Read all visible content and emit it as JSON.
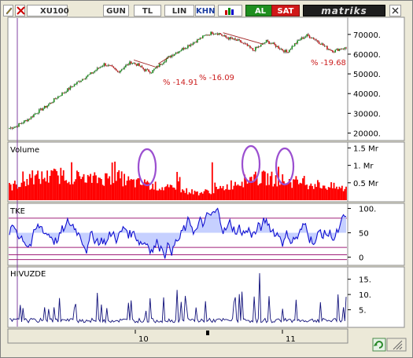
{
  "toolbar": {
    "symbol": "XU100",
    "period": "GUN",
    "currency": "TL",
    "scale": "LIN",
    "mode": "KHN",
    "buy_label": "AL",
    "sell_label": "SAT",
    "brand": "matriks",
    "buy_color": "#1f8f1f",
    "sell_color": "#d01818",
    "icons": [
      "edit-pencil-icon",
      "cross-out-icon",
      "bar-chart-icon",
      "close-icon"
    ]
  },
  "footer": {
    "refresh_icon": "refresh-icon",
    "resize_icon": "resize-grip-icon"
  },
  "chart_data": [
    {
      "type": "candlestick",
      "name": "XU100",
      "ylim": [
        17000,
        77500
      ],
      "yticks": [
        20000,
        30000,
        40000,
        50000,
        60000,
        70000
      ],
      "ytick_labels": [
        "20000.",
        "30000.",
        "40000.",
        "50000.",
        "60000.",
        "70000."
      ],
      "x_tick_labels": [
        "10",
        "11"
      ],
      "annotations": [
        {
          "text": "% -14.91",
          "color": "#cc2020"
        },
        {
          "text": "% -16.09",
          "color": "#cc2020"
        },
        {
          "text": "% -19.68",
          "color": "#cc2020"
        }
      ],
      "trend_points": [
        [
          0,
          22500
        ],
        [
          5,
          23500
        ],
        [
          10,
          25500
        ],
        [
          15,
          27500
        ],
        [
          20,
          30500
        ],
        [
          25,
          32500
        ],
        [
          30,
          35000
        ],
        [
          35,
          38000
        ],
        [
          40,
          40500
        ],
        [
          45,
          43000
        ],
        [
          50,
          45500
        ],
        [
          55,
          48000
        ],
        [
          60,
          50000
        ],
        [
          65,
          52500
        ],
        [
          70,
          55000
        ],
        [
          75,
          53500
        ],
        [
          80,
          51000
        ],
        [
          85,
          53500
        ],
        [
          90,
          56000
        ],
        [
          95,
          54500
        ],
        [
          100,
          52000
        ],
        [
          105,
          51000
        ],
        [
          110,
          54000
        ],
        [
          115,
          57000
        ],
        [
          120,
          59500
        ],
        [
          125,
          61500
        ],
        [
          130,
          63500
        ],
        [
          135,
          65500
        ],
        [
          140,
          67500
        ],
        [
          145,
          69500
        ],
        [
          150,
          71000
        ],
        [
          155,
          70500
        ],
        [
          160,
          68500
        ],
        [
          165,
          67500
        ],
        [
          170,
          66500
        ],
        [
          175,
          64500
        ],
        [
          180,
          62000
        ],
        [
          185,
          64000
        ],
        [
          190,
          66500
        ],
        [
          195,
          65000
        ],
        [
          200,
          63000
        ],
        [
          205,
          61000
        ],
        [
          210,
          64500
        ],
        [
          215,
          67500
        ],
        [
          220,
          69500
        ],
        [
          225,
          68000
        ],
        [
          230,
          65500
        ],
        [
          235,
          63000
        ],
        [
          240,
          61500
        ],
        [
          245,
          63000
        ]
      ]
    },
    {
      "type": "bar",
      "name": "Volume",
      "title": "Volume",
      "color": "#ff0000",
      "ylim": [
        0,
        1.6
      ],
      "yticks": [
        0.5,
        1.0,
        1.5
      ],
      "ytick_labels": [
        "0.5 Mr",
        "1. Mr",
        "1.5 Mr"
      ],
      "levels": [
        [
          0,
          0.45
        ],
        [
          20,
          0.75
        ],
        [
          40,
          0.85
        ],
        [
          60,
          0.7
        ],
        [
          80,
          0.78
        ],
        [
          90,
          0.6
        ],
        [
          100,
          0.55
        ],
        [
          110,
          0.45
        ],
        [
          125,
          0.35
        ],
        [
          140,
          0.25
        ],
        [
          155,
          0.35
        ],
        [
          165,
          0.55
        ],
        [
          175,
          0.7
        ],
        [
          190,
          0.75
        ],
        [
          205,
          0.65
        ],
        [
          225,
          0.55
        ],
        [
          245,
          0.4
        ]
      ],
      "highlight_color": "#9b4fd0"
    },
    {
      "type": "area",
      "name": "TKE",
      "title": "TKE",
      "color": "#1010d0",
      "ylim": [
        -12,
        104
      ],
      "yticks": [
        0,
        50,
        100
      ],
      "ytick_labels": [
        "0",
        "50",
        "100."
      ],
      "guide_lines": [
        80,
        20,
        5,
        -5
      ]
    },
    {
      "type": "line",
      "name": "HIVUZDE",
      "title": "HIVUZDE",
      "color": "#10107a",
      "ylim": [
        0,
        18
      ],
      "yticks": [
        5,
        10,
        15
      ],
      "ytick_labels": [
        "5.",
        "10.",
        "15."
      ]
    }
  ]
}
